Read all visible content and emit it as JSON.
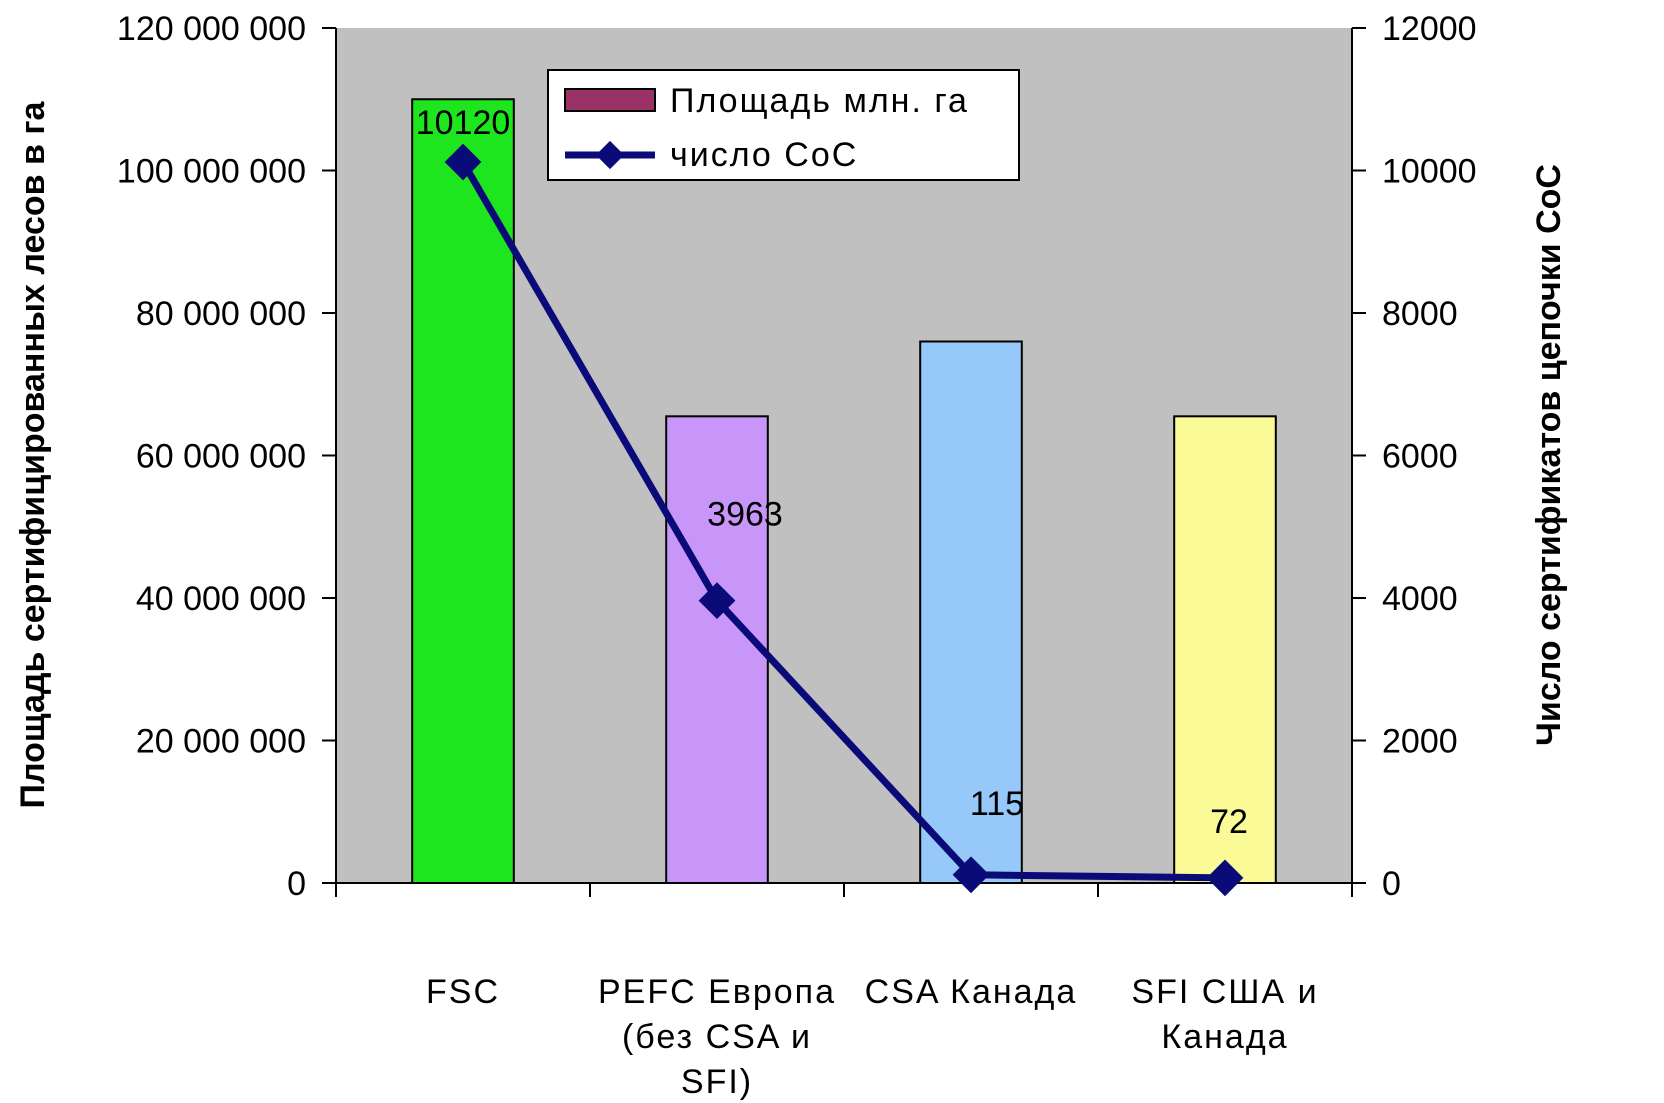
{
  "chart_data": {
    "type": "bar",
    "categories": [
      [
        "FSC"
      ],
      [
        "PEFC Европа",
        "(без CSA и",
        "SFI)"
      ],
      [
        "CSA Канада"
      ],
      [
        "SFI США и",
        "Канада"
      ]
    ],
    "series": [
      {
        "name": "Площадь млн. га",
        "type": "bar",
        "axis": "left",
        "values": [
          110000000,
          65500000,
          76000000,
          65500000
        ],
        "colors": [
          "#1ee61e",
          "#c896f8",
          "#96c8fa",
          "#fafa96"
        ]
      },
      {
        "name": "число CoC",
        "type": "line",
        "axis": "right",
        "values": [
          10120,
          3963,
          115,
          72
        ],
        "data_labels": [
          "10120",
          "3963",
          "115",
          "72"
        ],
        "color": "#0a0a78"
      }
    ],
    "ylabel": "Площадь сертифицированных лесов в га",
    "y2label": "Число сертификатов цепочки CoC",
    "ylim": [
      0,
      120000000
    ],
    "y2lim": [
      0,
      12000
    ],
    "yticks": [
      "0",
      "20 000 000",
      "40 000 000",
      "60 000 000",
      "80 000 000",
      "100 000 000",
      "120 000 000"
    ],
    "y2ticks": [
      "0",
      "2000",
      "4000",
      "6000",
      "8000",
      "10000",
      "12000"
    ],
    "plot_background": "#c0c0c0",
    "legend_position": "top-center",
    "legend_bar_color": "#993366",
    "grid": false
  }
}
